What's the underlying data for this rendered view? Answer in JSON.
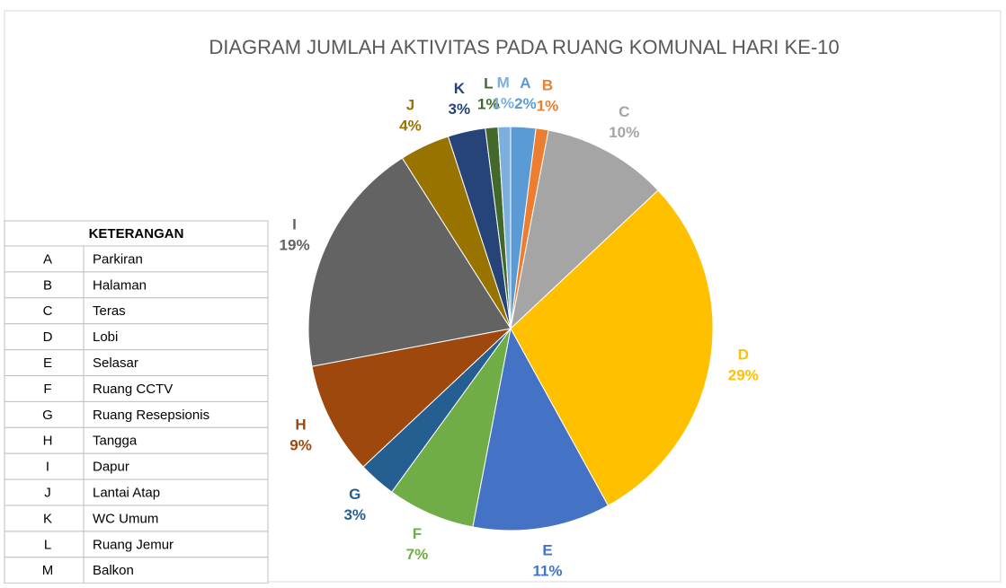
{
  "chart_data": {
    "type": "pie",
    "title": "DIAGRAM JUMLAH AKTIVITAS PADA RUANG KOMUNAL HARI KE-10",
    "categories": [
      "A",
      "B",
      "C",
      "D",
      "E",
      "F",
      "G",
      "H",
      "I",
      "J",
      "K",
      "L",
      "M"
    ],
    "values": [
      2,
      1,
      10,
      29,
      11,
      7,
      3,
      9,
      19,
      4,
      3,
      1,
      1
    ],
    "value_labels": [
      "2%",
      "1%",
      "10%",
      "29%",
      "11%",
      "7%",
      "3%",
      "9%",
      "19%",
      "4%",
      "3%",
      "1%",
      "1%"
    ],
    "colors": [
      "#5b9bd5",
      "#ed7d31",
      "#a5a5a5",
      "#ffc000",
      "#4472c4",
      "#70ad47",
      "#255e91",
      "#9e480e",
      "#636363",
      "#997300",
      "#264478",
      "#43682b",
      "#7cafdd"
    ]
  },
  "table": {
    "title": "KETERANGAN",
    "rows": [
      [
        "A",
        "Parkiran"
      ],
      [
        "B",
        "Halaman"
      ],
      [
        "C",
        "Teras"
      ],
      [
        "D",
        "Lobi"
      ],
      [
        "E",
        "Selasar"
      ],
      [
        "F",
        "Ruang CCTV"
      ],
      [
        "G",
        "Ruang Resepsionis"
      ],
      [
        "H",
        "Tangga"
      ],
      [
        "I",
        "Dapur"
      ],
      [
        "J",
        "Lantai Atap"
      ],
      [
        "K",
        "WC Umum"
      ],
      [
        "L",
        "Ruang Jemur"
      ],
      [
        "M",
        "Balkon"
      ]
    ]
  }
}
